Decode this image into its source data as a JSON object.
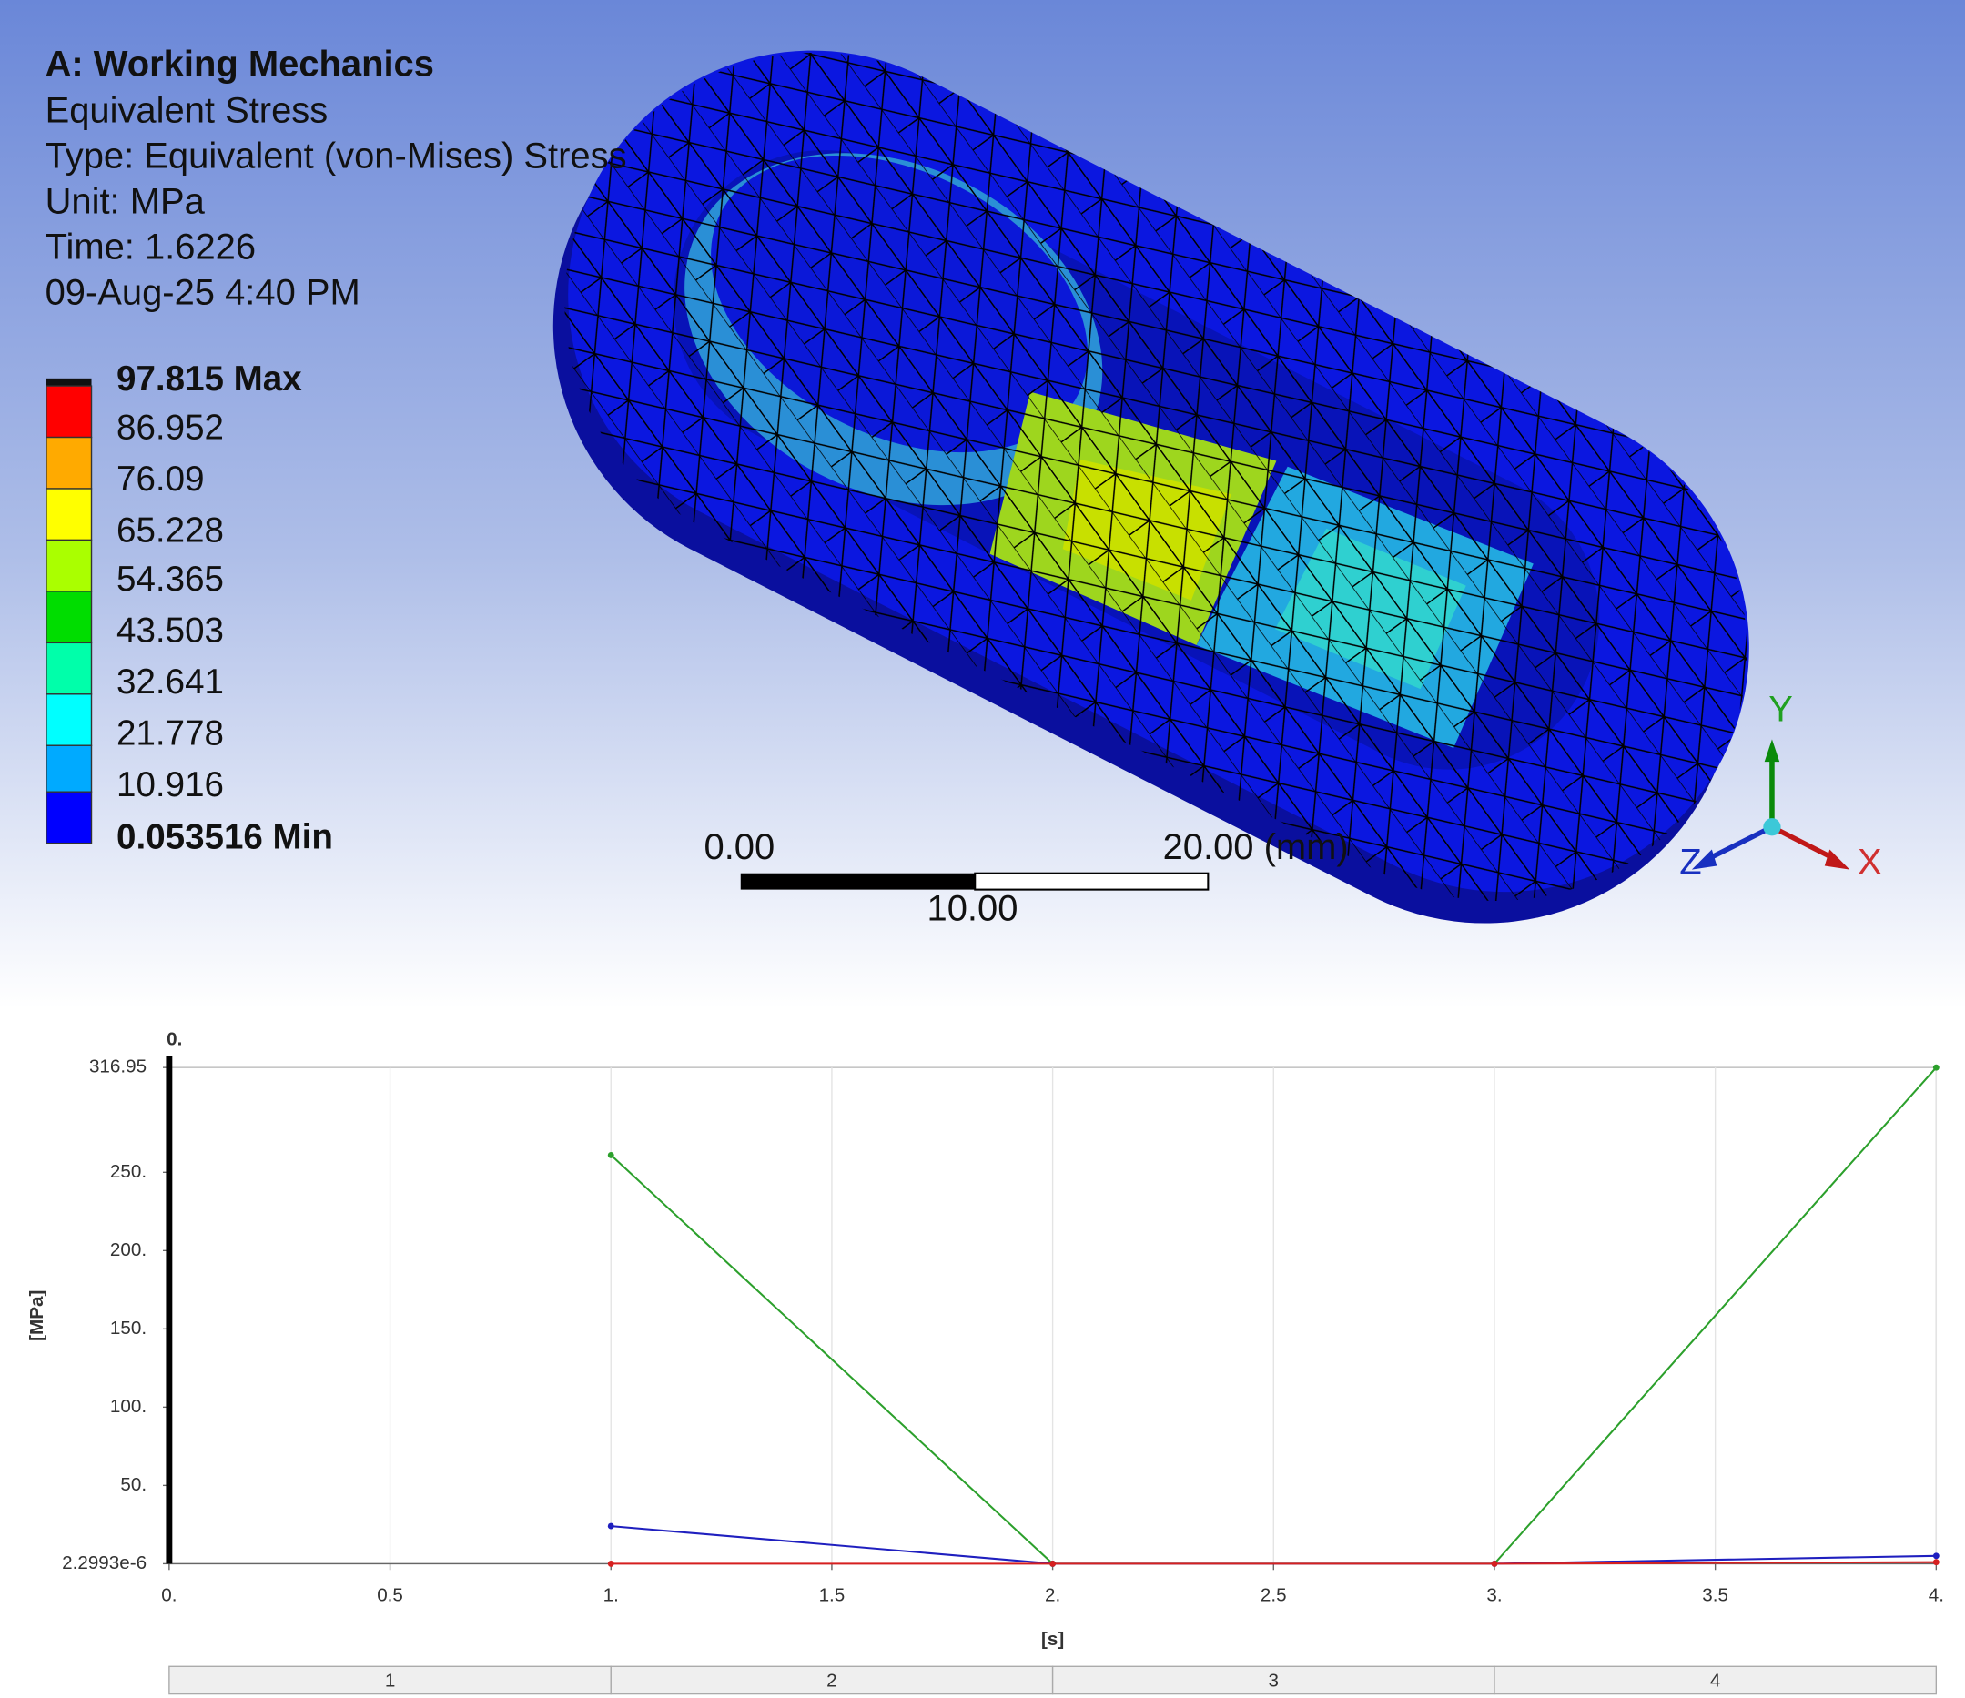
{
  "viewport": {
    "title": "A: Working Mechanics",
    "lines": [
      "Equivalent Stress",
      "Type: Equivalent (von-Mises) Stress",
      "Unit: MPa",
      "Time: 1.6226",
      "09-Aug-25 4:40 PM"
    ],
    "legend": {
      "labels": [
        "97.815 Max",
        "86.952",
        "76.09",
        "65.228",
        "54.365",
        "43.503",
        "32.641",
        "21.778",
        "10.916",
        "0.053516 Min"
      ]
    },
    "scale_bar": {
      "labels": [
        "0.00",
        "20.00 (mm)",
        "10.00"
      ]
    },
    "triad": {
      "labels": [
        "Y",
        "Z",
        "X"
      ]
    }
  },
  "chart_data": {
    "type": "line",
    "cursor_label": "0.",
    "x_label": "[s]",
    "y_label": "[MPa]",
    "x": [
      0,
      1,
      2,
      3,
      4
    ],
    "series": [
      {
        "color": "#2ca02c",
        "values": [
          null,
          261,
          0,
          0,
          316.95
        ]
      },
      {
        "color": "#1f1fbf",
        "values": [
          null,
          24,
          0,
          0,
          5
        ]
      },
      {
        "color": "#d62020",
        "values": [
          null,
          0,
          0,
          0,
          1
        ]
      }
    ],
    "xlim": [
      0,
      4
    ],
    "ylim": [
      2.2993e-06,
      316.95
    ],
    "xticks": [
      {
        "value": 0,
        "label": "0."
      },
      0.5,
      {
        "value": 1,
        "label": "1."
      },
      1.5,
      {
        "value": 2,
        "label": "2."
      },
      2.5,
      {
        "value": 3,
        "label": "3."
      },
      3.5,
      {
        "value": 4,
        "label": "4."
      }
    ],
    "yticks": [
      {
        "value": 2.2993e-06,
        "label": "2.2993e-6"
      },
      {
        "value": 50,
        "label": "50."
      },
      {
        "value": 100,
        "label": "100."
      },
      {
        "value": 150,
        "label": "150."
      },
      {
        "value": 200,
        "label": "200."
      },
      {
        "value": 250,
        "label": "250."
      },
      316.95
    ],
    "grid": true,
    "steps": [
      "1",
      "2",
      "3",
      "4"
    ]
  }
}
